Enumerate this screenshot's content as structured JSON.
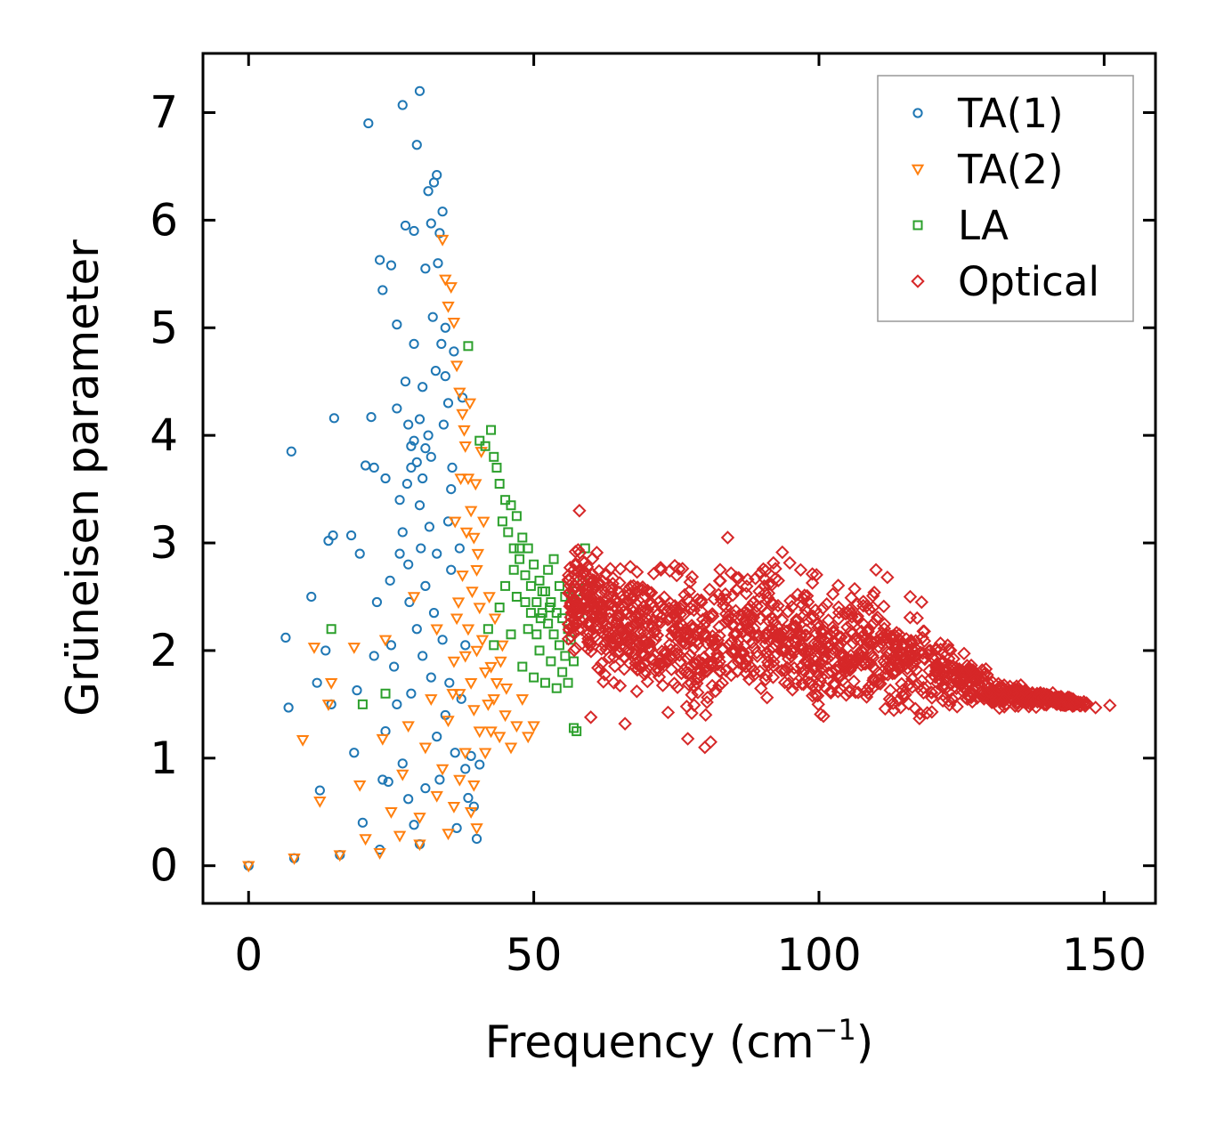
{
  "chart_data": {
    "type": "scatter",
    "title": "",
    "xlabel": "Frequency (cm",
    "xlabel_sup": "−1",
    "xlabel_close": ")",
    "ylabel": "Grüneisen parameter",
    "xlim": [
      -8,
      159
    ],
    "ylim": [
      -0.35,
      7.55
    ],
    "xticks": [
      0,
      50,
      100,
      150
    ],
    "yticks": [
      0,
      1,
      2,
      3,
      4,
      5,
      6,
      7
    ],
    "legend_position": "top-right",
    "series": [
      {
        "name": "TA(1)",
        "marker": "circle",
        "color": "#1f77b4",
        "points": [
          [
            0,
            0
          ],
          [
            8,
            0.07
          ],
          [
            16,
            0.1
          ],
          [
            23,
            0.15
          ],
          [
            30,
            0.2
          ],
          [
            6.5,
            2.12
          ],
          [
            7,
            1.47
          ],
          [
            7.5,
            3.85
          ],
          [
            11,
            2.5
          ],
          [
            12,
            1.7
          ],
          [
            12.5,
            0.7
          ],
          [
            13.5,
            2.0
          ],
          [
            14,
            3.02
          ],
          [
            14.5,
            1.5
          ],
          [
            14.8,
            3.07
          ],
          [
            15,
            4.16
          ],
          [
            18,
            3.07
          ],
          [
            18.5,
            1.05
          ],
          [
            19,
            1.63
          ],
          [
            19.5,
            2.9
          ],
          [
            20,
            0.4
          ],
          [
            20.5,
            3.72
          ],
          [
            21,
            6.9
          ],
          [
            21.5,
            4.17
          ],
          [
            22,
            3.7
          ],
          [
            22.5,
            2.45
          ],
          [
            23,
            5.63
          ],
          [
            23.5,
            5.35
          ],
          [
            24,
            3.6
          ],
          [
            25,
            5.58
          ],
          [
            26,
            5.03
          ],
          [
            26.5,
            3.4
          ],
          [
            27,
            7.07
          ],
          [
            27.5,
            5.95
          ],
          [
            28,
            4.1
          ],
          [
            28.5,
            3.9
          ],
          [
            29,
            5.9
          ],
          [
            29.5,
            6.7
          ],
          [
            30,
            7.2
          ],
          [
            30.5,
            4.45
          ],
          [
            31,
            5.55
          ],
          [
            31.5,
            6.27
          ],
          [
            32,
            5.97
          ],
          [
            32.5,
            6.35
          ],
          [
            33,
            6.42
          ],
          [
            33.5,
            5.88
          ],
          [
            34,
            6.08
          ],
          [
            34.5,
            5.0
          ],
          [
            35,
            4.3
          ],
          [
            35.5,
            3.5
          ],
          [
            36,
            4.78
          ],
          [
            37,
            2.95
          ],
          [
            37.5,
            4.35
          ],
          [
            38,
            2.05
          ],
          [
            38.5,
            0.63
          ],
          [
            39,
            1.02
          ],
          [
            39.5,
            0.55
          ],
          [
            40,
            0.25
          ],
          [
            40.5,
            0.94
          ],
          [
            36.5,
            0.35
          ],
          [
            25.5,
            1.85
          ],
          [
            26,
            4.25
          ],
          [
            27,
            3.1
          ],
          [
            27.5,
            4.5
          ],
          [
            28,
            2.8
          ],
          [
            28.5,
            1.6
          ],
          [
            29,
            4.85
          ],
          [
            29.5,
            2.2
          ],
          [
            30,
            3.35
          ],
          [
            30.5,
            1.95
          ],
          [
            31,
            2.6
          ],
          [
            31.5,
            4.0
          ],
          [
            32,
            3.8
          ],
          [
            32.5,
            2.35
          ],
          [
            33,
            1.2
          ],
          [
            33.5,
            0.8
          ],
          [
            34,
            2.1
          ],
          [
            34.5,
            1.4
          ],
          [
            35,
            3.2
          ],
          [
            35.5,
            2.75
          ],
          [
            24,
            1.25
          ],
          [
            24.5,
            0.78
          ],
          [
            25,
            2.05
          ],
          [
            26,
            1.5
          ],
          [
            27,
            0.95
          ],
          [
            28,
            0.62
          ],
          [
            29,
            0.38
          ],
          [
            31,
            0.72
          ],
          [
            32,
            1.75
          ],
          [
            33,
            2.9
          ],
          [
            29,
            3.95
          ],
          [
            29.5,
            3.75
          ],
          [
            30,
            4.15
          ],
          [
            30.5,
            3.6
          ],
          [
            31,
            3.88
          ],
          [
            28.5,
            3.7
          ],
          [
            27.8,
            3.55
          ],
          [
            30.2,
            2.95
          ],
          [
            31.7,
            3.15
          ],
          [
            32.8,
            4.6
          ],
          [
            33.8,
            4.85
          ],
          [
            34.5,
            4.55
          ],
          [
            35.2,
            1.7
          ],
          [
            36.2,
            1.05
          ],
          [
            37.3,
            1.55
          ],
          [
            38,
            0.9
          ],
          [
            22,
            1.95
          ],
          [
            23.5,
            0.8
          ],
          [
            24.8,
            2.65
          ],
          [
            26.5,
            2.9
          ],
          [
            28.2,
            2.45
          ],
          [
            32.3,
            5.1
          ],
          [
            33.2,
            5.6
          ],
          [
            34.2,
            4.1
          ],
          [
            35.7,
            3.7
          ]
        ]
      },
      {
        "name": "TA(2)",
        "marker": "triangle-down",
        "color": "#ff7f0e",
        "points": [
          [
            0,
            0
          ],
          [
            8,
            0.07
          ],
          [
            16,
            0.1
          ],
          [
            23,
            0.12
          ],
          [
            30,
            0.2
          ],
          [
            9.5,
            1.17
          ],
          [
            11.5,
            2.03
          ],
          [
            12.5,
            0.6
          ],
          [
            14,
            1.5
          ],
          [
            14.5,
            1.7
          ],
          [
            18.5,
            2.03
          ],
          [
            19.5,
            0.75
          ],
          [
            20.5,
            0.25
          ],
          [
            23.5,
            1.18
          ],
          [
            24,
            2.1
          ],
          [
            25,
            0.5
          ],
          [
            26.5,
            0.28
          ],
          [
            27,
            0.85
          ],
          [
            28,
            1.3
          ],
          [
            29,
            2.5
          ],
          [
            30,
            0.45
          ],
          [
            31,
            1.1
          ],
          [
            32,
            1.55
          ],
          [
            33,
            2.2
          ],
          [
            34,
            5.82
          ],
          [
            34.5,
            5.45
          ],
          [
            35,
            5.2
          ],
          [
            35.5,
            5.38
          ],
          [
            36,
            5.05
          ],
          [
            36.5,
            4.65
          ],
          [
            37,
            4.4
          ],
          [
            37.5,
            4.2
          ],
          [
            38,
            3.9
          ],
          [
            38.5,
            3.6
          ],
          [
            39,
            3.3
          ],
          [
            39.5,
            3.05
          ],
          [
            40,
            2.75
          ],
          [
            40.5,
            2.4
          ],
          [
            41,
            2.1
          ],
          [
            41.5,
            1.8
          ],
          [
            42,
            1.5
          ],
          [
            42.5,
            1.25
          ],
          [
            43,
            1.55
          ],
          [
            44,
            1.2
          ],
          [
            45,
            1.4
          ],
          [
            46,
            1.1
          ],
          [
            47,
            1.3
          ],
          [
            48,
            1.55
          ],
          [
            49,
            1.2
          ],
          [
            50,
            1.3
          ],
          [
            36,
            1.9
          ],
          [
            36.5,
            2.3
          ],
          [
            37,
            1.6
          ],
          [
            37.5,
            2.7
          ],
          [
            38,
            1.95
          ],
          [
            38.5,
            2.2
          ],
          [
            39,
            1.7
          ],
          [
            39.5,
            1.45
          ],
          [
            40,
            2.0
          ],
          [
            40.5,
            1.25
          ],
          [
            35,
            0.3
          ],
          [
            36,
            0.55
          ],
          [
            37,
            0.8
          ],
          [
            38,
            1.05
          ],
          [
            39,
            0.5
          ],
          [
            39.5,
            0.75
          ],
          [
            40,
            0.35
          ],
          [
            35,
            1.35
          ],
          [
            34,
            0.9
          ],
          [
            33,
            0.65
          ],
          [
            36.2,
            3.2
          ],
          [
            37.2,
            3.6
          ],
          [
            38.2,
            3.1
          ],
          [
            39.2,
            2.55
          ],
          [
            40.2,
            2.9
          ],
          [
            41.2,
            3.2
          ],
          [
            42.2,
            2.5
          ],
          [
            43.2,
            2.3
          ],
          [
            44.2,
            1.9
          ],
          [
            45.2,
            1.65
          ],
          [
            41.5,
            1.05
          ],
          [
            42.5,
            1.85
          ],
          [
            43.5,
            1.7
          ],
          [
            44.5,
            2.05
          ],
          [
            37.8,
            4.05
          ],
          [
            38.8,
            4.3
          ],
          [
            39.8,
            3.55
          ],
          [
            40.8,
            3.85
          ],
          [
            36.8,
            2.45
          ],
          [
            35.8,
            1.6
          ]
        ]
      },
      {
        "name": "LA",
        "marker": "square",
        "color": "#2ca02c",
        "points": [
          [
            14.5,
            2.2
          ],
          [
            20,
            1.5
          ],
          [
            24,
            1.6
          ],
          [
            38.5,
            4.83
          ],
          [
            40.5,
            3.95
          ],
          [
            41.5,
            3.9
          ],
          [
            42.5,
            4.05
          ],
          [
            43,
            3.8
          ],
          [
            43.5,
            3.7
          ],
          [
            44,
            3.55
          ],
          [
            44.5,
            3.2
          ],
          [
            45,
            3.4
          ],
          [
            45.5,
            3.1
          ],
          [
            46,
            3.35
          ],
          [
            46.5,
            2.95
          ],
          [
            47,
            3.25
          ],
          [
            47.5,
            2.85
          ],
          [
            48,
            3.05
          ],
          [
            48.5,
            2.7
          ],
          [
            49,
            2.95
          ],
          [
            49.5,
            2.6
          ],
          [
            50,
            2.8
          ],
          [
            50.5,
            2.45
          ],
          [
            51,
            2.65
          ],
          [
            51.5,
            2.35
          ],
          [
            52,
            2.55
          ],
          [
            52.5,
            2.25
          ],
          [
            53,
            2.45
          ],
          [
            53.5,
            2.15
          ],
          [
            54,
            2.35
          ],
          [
            54.5,
            2.05
          ],
          [
            55,
            2.3
          ],
          [
            55.5,
            1.95
          ],
          [
            56,
            2.2
          ],
          [
            56.5,
            2.45
          ],
          [
            57,
            1.9
          ],
          [
            57.5,
            2.55
          ],
          [
            58,
            2.35
          ],
          [
            58.5,
            2.65
          ],
          [
            59,
            2.95
          ],
          [
            42,
            2.2
          ],
          [
            43,
            2.05
          ],
          [
            44,
            2.4
          ],
          [
            45,
            2.6
          ],
          [
            46,
            2.15
          ],
          [
            47,
            2.5
          ],
          [
            48,
            1.85
          ],
          [
            49,
            2.2
          ],
          [
            50,
            1.75
          ],
          [
            51,
            2.0
          ],
          [
            52,
            1.7
          ],
          [
            53,
            1.9
          ],
          [
            54,
            1.65
          ],
          [
            55,
            1.8
          ],
          [
            56,
            1.7
          ],
          [
            57,
            1.28
          ],
          [
            57.5,
            1.25
          ],
          [
            46.5,
            2.75
          ],
          [
            47.5,
            2.95
          ],
          [
            48.5,
            2.45
          ],
          [
            49.5,
            2.35
          ],
          [
            50.5,
            2.15
          ],
          [
            51.5,
            2.55
          ],
          [
            52.5,
            2.75
          ],
          [
            53.5,
            2.85
          ],
          [
            54.5,
            2.6
          ],
          [
            55.5,
            2.5
          ],
          [
            56.5,
            2.1
          ],
          [
            52.8,
            2.4
          ],
          [
            51.2,
            2.3
          ]
        ]
      },
      {
        "name": "Optical",
        "marker": "diamond",
        "color": "#d62728",
        "generated": true,
        "min_x": 56,
        "max_x": 151,
        "upper_envelope": [
          [
            56,
            2.95
          ],
          [
            58,
            3.3
          ],
          [
            62,
            3.0
          ],
          [
            70,
            2.95
          ],
          [
            80,
            2.95
          ],
          [
            85,
            2.9
          ],
          [
            92,
            3.05
          ],
          [
            100,
            2.75
          ],
          [
            110,
            2.7
          ],
          [
            118,
            2.4
          ],
          [
            125,
            2.05
          ],
          [
            132,
            1.75
          ],
          [
            140,
            1.65
          ],
          [
            146,
            1.55
          ],
          [
            151,
            1.5
          ]
        ],
        "lower_envelope": [
          [
            56,
            1.9
          ],
          [
            60,
            1.6
          ],
          [
            70,
            1.4
          ],
          [
            80,
            1.1
          ],
          [
            85,
            1.4
          ],
          [
            95,
            1.35
          ],
          [
            105,
            1.3
          ],
          [
            110,
            1.25
          ],
          [
            118,
            1.25
          ],
          [
            125,
            1.45
          ],
          [
            135,
            1.45
          ],
          [
            145,
            1.45
          ],
          [
            151,
            1.48
          ]
        ],
        "points": [
          [
            151,
            1.49
          ],
          [
            148.5,
            1.47
          ],
          [
            145.5,
            1.52
          ],
          [
            143,
            1.5
          ],
          [
            60,
            1.38
          ],
          [
            66,
            1.32
          ],
          [
            77,
            1.18
          ],
          [
            80,
            1.1
          ],
          [
            81,
            1.15
          ],
          [
            84,
            3.05
          ],
          [
            110,
            2.75
          ],
          [
            112,
            2.68
          ],
          [
            116,
            2.5
          ],
          [
            118,
            2.45
          ],
          [
            58,
            3.3
          ]
        ]
      }
    ]
  }
}
